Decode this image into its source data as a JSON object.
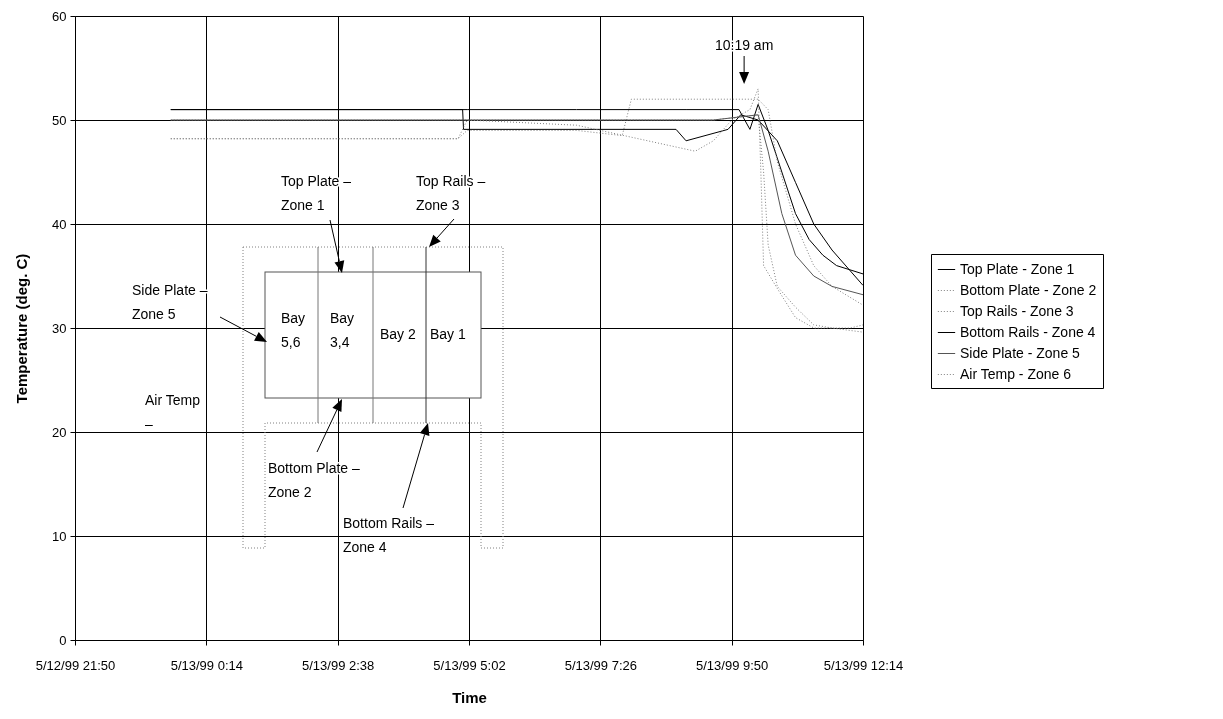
{
  "chart_data": {
    "type": "line",
    "xlabel": "Time",
    "ylabel": "Temperature (deg. C)",
    "xlim": [
      "1999-05-12T21:50",
      "1999-05-13T12:14"
    ],
    "xticks": [
      {
        "value": "1999-05-12T21:50",
        "label": "5/12/99 21:50"
      },
      {
        "value": "1999-05-13T00:14",
        "label": "5/13/99 0:14"
      },
      {
        "value": "1999-05-13T02:38",
        "label": "5/13/99 2:38"
      },
      {
        "value": "1999-05-13T05:02",
        "label": "5/13/99 5:02"
      },
      {
        "value": "1999-05-13T07:26",
        "label": "5/13/99 7:26"
      },
      {
        "value": "1999-05-13T09:50",
        "label": "5/13/99 9:50"
      },
      {
        "value": "1999-05-13T12:14",
        "label": "5/13/99 12:14"
      }
    ],
    "ylim": [
      0,
      60
    ],
    "yticks": [
      0,
      10,
      20,
      30,
      40,
      50,
      60
    ],
    "grid": true,
    "legend": "right",
    "series": [
      {
        "name": "Top Plate - Zone 1",
        "color": "#000000",
        "line_style": "solid",
        "x": [
          "1999-05-12T23:35",
          "1999-05-13T01:00",
          "1999-05-13T03:00",
          "1999-05-13T05:00",
          "1999-05-13T07:00",
          "1999-05-13T09:00",
          "1999-05-13T09:58",
          "1999-05-13T10:10",
          "1999-05-13T10:19",
          "1999-05-13T10:30",
          "1999-05-13T10:45",
          "1999-05-13T11:00",
          "1999-05-13T11:15",
          "1999-05-13T11:30",
          "1999-05-13T11:45",
          "1999-05-13T12:14"
        ],
        "values": [
          51,
          51,
          51,
          51,
          51,
          51,
          51,
          49.1,
          51.5,
          49,
          45,
          41,
          38.5,
          37,
          36,
          35.2
        ]
      },
      {
        "name": "Bottom Plate - Zone 2",
        "color": "#808080",
        "line_style": "dotted",
        "x": [
          "1999-05-12T23:35",
          "1999-05-13T02:00",
          "1999-05-13T05:00",
          "1999-05-13T08:00",
          "1999-05-13T09:30",
          "1999-05-13T10:19",
          "1999-05-13T10:25",
          "1999-05-13T10:30",
          "1999-05-13T10:40",
          "1999-05-13T11:00",
          "1999-05-13T11:20",
          "1999-05-13T11:40",
          "1999-05-13T12:14"
        ],
        "values": [
          50,
          50,
          50,
          50,
          50,
          50.5,
          45,
          38,
          34,
          32,
          30.3,
          30,
          29.6
        ]
      },
      {
        "name": "Top Rails - Zone 3",
        "color": "#808080",
        "line_style": "dotted",
        "x": [
          "1999-05-12T23:35",
          "1999-05-13T02:00",
          "1999-05-13T04:50",
          "1999-05-13T05:00",
          "1999-05-13T07:00",
          "1999-05-13T07:50",
          "1999-05-13T08:00",
          "1999-05-13T09:00",
          "1999-05-13T09:50",
          "1999-05-13T10:19",
          "1999-05-13T10:30",
          "1999-05-13T10:40",
          "1999-05-13T11:00",
          "1999-05-13T11:20",
          "1999-05-13T11:40",
          "1999-05-13T12:14"
        ],
        "values": [
          48.2,
          48.2,
          48.2,
          49,
          49,
          48.5,
          52,
          52,
          52,
          52,
          51,
          46,
          40,
          36,
          34,
          32.2
        ]
      },
      {
        "name": "Bottom Rails - Zone 4",
        "color": "#000000",
        "line_style": "solid",
        "x": [
          "1999-05-12T23:35",
          "1999-05-13T04:55",
          "1999-05-13T04:56",
          "1999-05-13T08:49",
          "1999-05-13T09:00",
          "1999-05-13T09:46",
          "1999-05-13T10:00",
          "1999-05-13T10:19",
          "1999-05-13T10:40",
          "1999-05-13T11:00",
          "1999-05-13T11:20",
          "1999-05-13T11:40",
          "1999-05-13T12:00",
          "1999-05-13T12:14"
        ],
        "values": [
          51,
          51,
          49.1,
          49.1,
          48,
          49.1,
          50.5,
          50,
          48,
          44,
          40,
          37.5,
          35.5,
          34.1
        ]
      },
      {
        "name": "Side Plate - Zone 5",
        "color": "#555555",
        "line_style": "solid",
        "x": [
          "1999-05-12T23:35",
          "1999-05-13T05:00",
          "1999-05-13T08:00",
          "1999-05-13T09:30",
          "1999-05-13T10:19",
          "1999-05-13T10:30",
          "1999-05-13T10:45",
          "1999-05-13T11:00",
          "1999-05-13T11:20",
          "1999-05-13T11:40",
          "1999-05-13T12:14"
        ],
        "values": [
          50,
          50,
          50,
          50,
          50.5,
          47,
          41,
          37,
          35,
          34,
          33.2
        ]
      },
      {
        "name": "Air Temp - Zone 6",
        "color": "#808080",
        "line_style": "dotted",
        "x": [
          "1999-05-12T23:35",
          "1999-05-13T04:50",
          "1999-05-13T05:00",
          "1999-05-13T07:00",
          "1999-05-13T09:10",
          "1999-05-13T09:30",
          "1999-05-13T09:50",
          "1999-05-13T10:10",
          "1999-05-13T10:19",
          "1999-05-13T10:22",
          "1999-05-13T10:25",
          "1999-05-13T10:40",
          "1999-05-13T11:00",
          "1999-05-13T11:20",
          "1999-05-13T12:00",
          "1999-05-13T12:14"
        ],
        "values": [
          48.2,
          48.2,
          50,
          49.5,
          47,
          48,
          50,
          51,
          53,
          45,
          36,
          33.8,
          31,
          30,
          30,
          30.3
        ]
      }
    ],
    "annotations": [
      {
        "text": "10:19 am",
        "x": "1999-05-13T10:19",
        "y": 52.5
      },
      "Top Plate –\nZone 1",
      "Top Rails –\nZone 3",
      "Side Plate –\nZone 5",
      "Air Temp\n–",
      "Bottom Plate –\nZone 2",
      "Bottom Rails –\nZone 4",
      "Bay\n5,6",
      "Bay\n3,4",
      "Bay 2",
      "Bay 1"
    ]
  }
}
